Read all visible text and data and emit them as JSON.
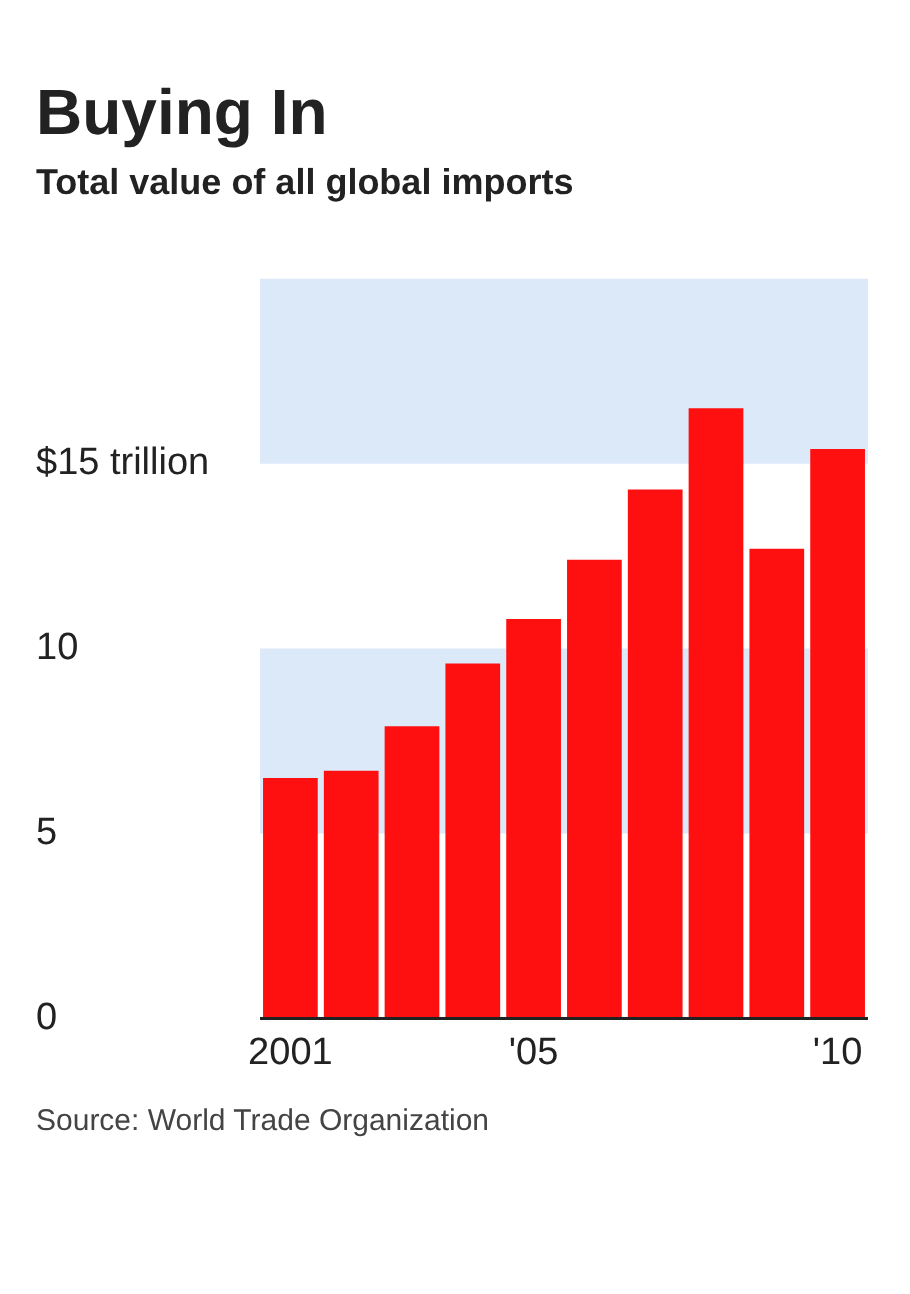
{
  "chart_data": {
    "type": "bar",
    "title": "Buying In",
    "subtitle": "Total value of all global imports",
    "categories": [
      "2001",
      null,
      null,
      null,
      "'05",
      null,
      null,
      null,
      null,
      "'10"
    ],
    "values": [
      6.5,
      6.7,
      7.9,
      9.6,
      10.8,
      12.4,
      14.3,
      16.5,
      12.7,
      15.4
    ],
    "color": "#ff1010",
    "ylim": [
      0,
      20
    ],
    "yticks": [
      0,
      5,
      10,
      {
        "value": 15,
        "label": "$15 trillion"
      }
    ],
    "bands": [
      {
        "axis": "y",
        "from": 5,
        "to": 10,
        "color": "#dce9f8"
      },
      {
        "axis": "y",
        "from": 15,
        "to": 20,
        "color": "#dce9f8"
      }
    ],
    "grid": false,
    "annotations": [
      "Source: World Trade Organization"
    ]
  }
}
